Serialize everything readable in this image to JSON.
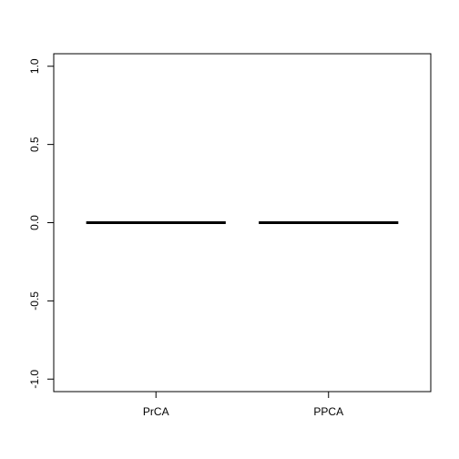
{
  "chart_data": {
    "type": "box",
    "title": "",
    "xlabel": "",
    "ylabel": "",
    "categories": [
      "PrCA",
      "PPCA"
    ],
    "series": [
      {
        "values": [
          0,
          0
        ],
        "stats": [
          {
            "min": 0,
            "q1": 0,
            "median": 0,
            "q3": 0,
            "max": 0
          },
          {
            "min": 0,
            "q1": 0,
            "median": 0,
            "q3": 0,
            "max": 0
          }
        ]
      }
    ],
    "ylim": [
      -1.08,
      1.08
    ],
    "yticks": [
      -1.0,
      -0.5,
      0.0,
      0.5,
      1.0
    ],
    "ytick_labels": [
      "-1.0",
      "-0.5",
      "0.0",
      "0.5",
      "1.0"
    ],
    "grid": false,
    "colors": {
      "median_line": "#000000",
      "axis": "#000000",
      "background": "#ffffff"
    }
  }
}
